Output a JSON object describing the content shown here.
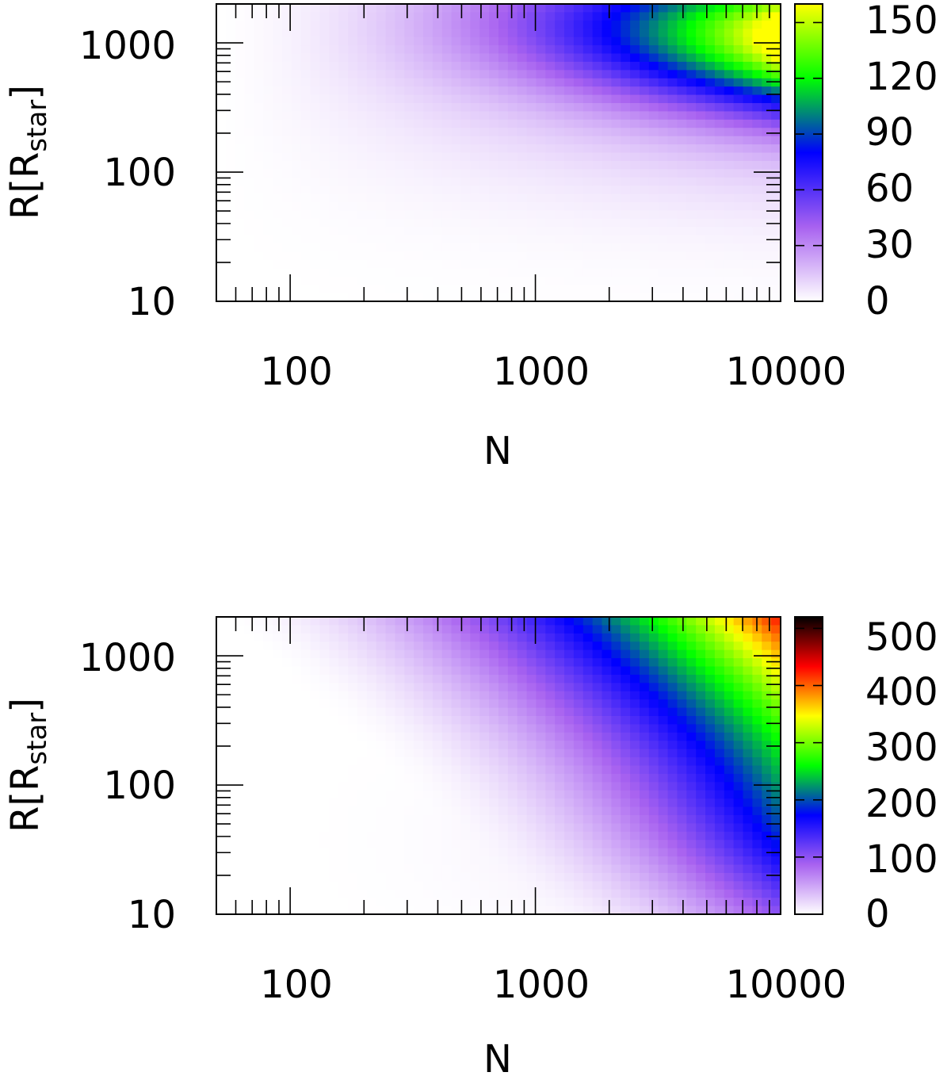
{
  "chart_data": [
    {
      "type": "heatmap",
      "xlabel": "N",
      "ylabel": "R[R",
      "ylabel_sub": "star",
      "ylabel_close": "]",
      "x_scale": "log",
      "y_scale": "log",
      "xlim": [
        50,
        10000
      ],
      "ylim": [
        10,
        2000
      ],
      "x_ticks": [
        100,
        1000,
        10000
      ],
      "x_tick_labels": [
        "100",
        "1000",
        "10000"
      ],
      "y_ticks": [
        10,
        100,
        1000
      ],
      "y_tick_labels": [
        "10",
        "100",
        "1000"
      ],
      "grid": false,
      "colorbar": {
        "min": 0,
        "max": 160,
        "ticks": [
          0,
          30,
          60,
          90,
          120,
          150
        ],
        "tick_labels": [
          "0",
          "30",
          "60",
          "90",
          "120",
          "150"
        ],
        "colors": [
          "#ffffff",
          "#a862f0",
          "#0000ff",
          "#00ff00",
          "#ffff00"
        ]
      },
      "surface": {
        "description_values": "peak ~150 at N=10000, R=2000; ridge near R~1000 for N>2000",
        "peak_value": 150,
        "peak_location": [
          10000,
          2000
        ]
      }
    },
    {
      "type": "heatmap",
      "xlabel": "N",
      "ylabel": "R[R",
      "ylabel_sub": "star",
      "ylabel_close": "]",
      "x_scale": "log",
      "y_scale": "log",
      "xlim": [
        50,
        10000
      ],
      "ylim": [
        10,
        2000
      ],
      "x_ticks": [
        100,
        1000,
        10000
      ],
      "x_tick_labels": [
        "100",
        "1000",
        "10000"
      ],
      "y_ticks": [
        10,
        100,
        1000
      ],
      "y_tick_labels": [
        "10",
        "100",
        "1000"
      ],
      "grid": false,
      "colorbar": {
        "min": 0,
        "max": 520,
        "ticks": [
          0,
          100,
          200,
          300,
          400,
          500
        ],
        "tick_labels": [
          "0",
          "100",
          "200",
          "300",
          "400",
          "500"
        ],
        "colors": [
          "#ffffff",
          "#a862f0",
          "#0000ff",
          "#00ff00",
          "#ffff00",
          "#ff0000",
          "#000000"
        ]
      },
      "surface": {
        "peak_value": 400,
        "peak_location": [
          10000,
          2000
        ]
      }
    }
  ]
}
